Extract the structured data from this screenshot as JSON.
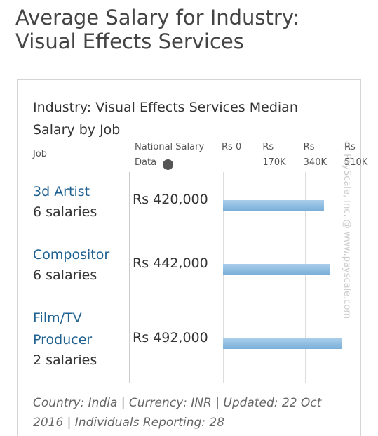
{
  "page": {
    "title": "Average Salary for Industry: Visual Effects Services"
  },
  "chart_data": {
    "type": "bar",
    "orientation": "horizontal",
    "title": "Industry: Visual Effects Services Median Salary by Job",
    "category_header": "Job",
    "value_header": "National Salary Data",
    "categories": [
      "3d Artist",
      "Compositor",
      "Film/TV Producer"
    ],
    "category_notes": [
      "6 salaries",
      "6 salaries",
      "2 salaries"
    ],
    "values": [
      420000,
      442000,
      492000
    ],
    "value_labels": [
      "Rs 420,000",
      "Rs 442,000",
      "Rs 492,000"
    ],
    "color": "#7aafd9",
    "xlim": [
      0,
      510000
    ],
    "xticks": [
      {
        "value": 0,
        "label": "Rs 0"
      },
      {
        "value": 170000,
        "label": "Rs 170K"
      },
      {
        "value": 340000,
        "label": "Rs 340K"
      },
      {
        "value": 510000,
        "label": "Rs 510K"
      }
    ],
    "grid": true,
    "watermark": "© PayScale, Inc. @ www.payscale.com",
    "footnote": "Country: India | Currency: INR | Updated: 22 Oct 2016 | Individuals Reporting: 28"
  }
}
